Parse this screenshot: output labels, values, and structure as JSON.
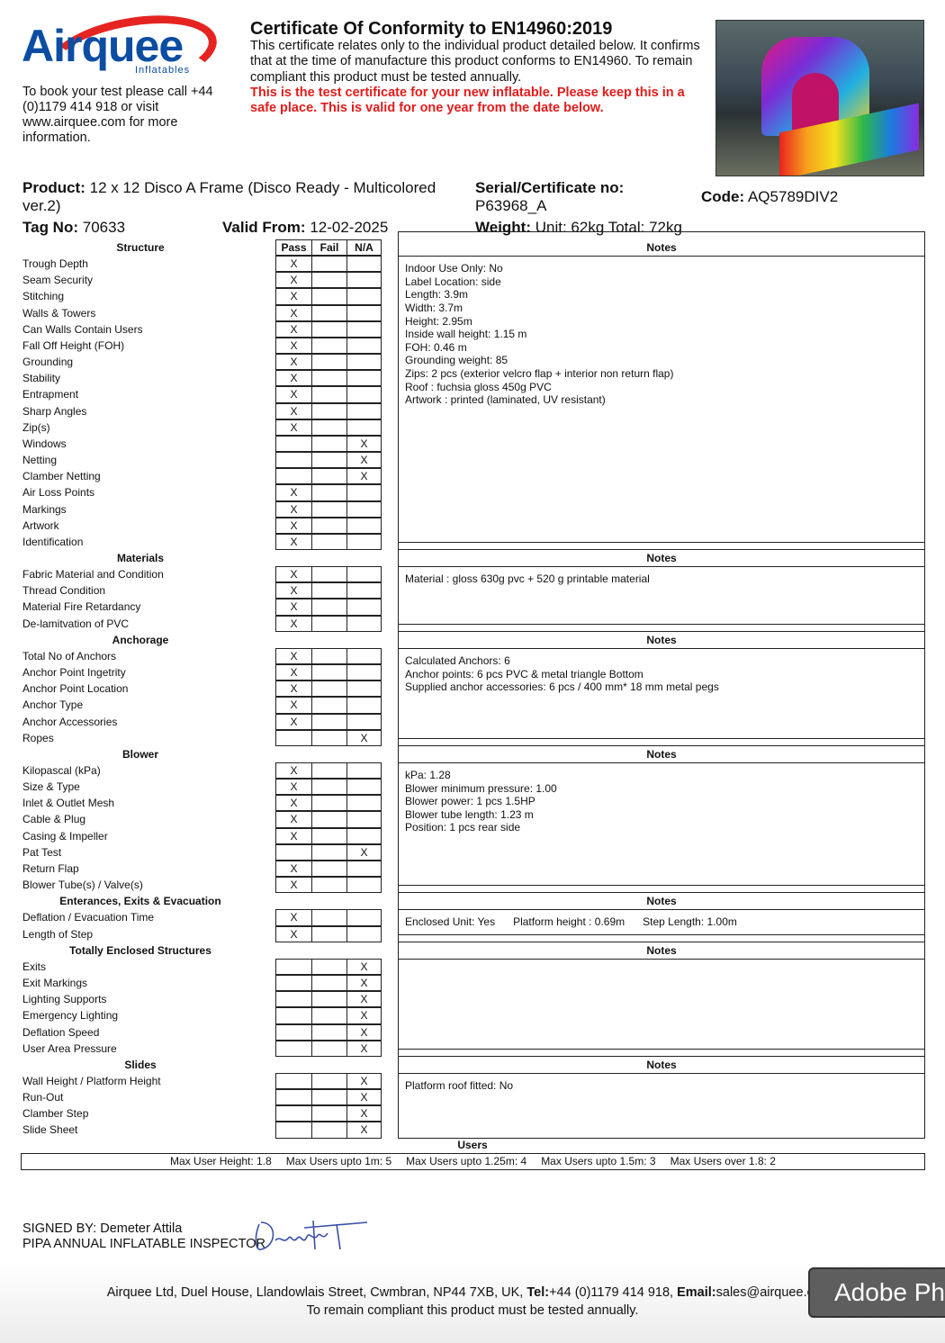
{
  "brand": {
    "logo_text": "Airquee",
    "logo_sub": "Inflatables",
    "primary": "#0b4da2",
    "accent": "#e52421"
  },
  "intro": "To book your test please call +44 (0)1179 414 918 or visit www.airquee.com for more information.",
  "cert": {
    "title": "Certificate Of Conformity to EN14960:2019",
    "body": "This certificate relates only to the individual product detailed below. It confirms that at the time of manufacture this product conforms to EN14960. To remain compliant this product must be tested annually.",
    "warning": "This is the test certificate for your new inflatable. Please keep this in a safe place. This is valid for one year from the date below."
  },
  "product": {
    "product_label": "Product:",
    "product_value": "12 x 12 Disco A Frame (Disco Ready - Multicolored ver.2)",
    "serial_label": "Serial/Certificate no:",
    "serial_value": "P63968_A",
    "code_label": "Code:",
    "code_value": "AQ5789DIV2",
    "tag_label": "Tag No:",
    "tag_value": "70633",
    "valid_label": "Valid From:",
    "valid_value": "12-02-2025",
    "weight_label": "Weight:",
    "weight_value": "Unit: 62kg Total: 72kg"
  },
  "table": {
    "columns": [
      "Pass",
      "Fail",
      "N/A"
    ],
    "notes_label": "Notes",
    "mark": "X"
  },
  "sections": [
    {
      "title": "Structure",
      "items": [
        [
          "Trough Depth",
          0
        ],
        [
          "Seam Security",
          0
        ],
        [
          "Stitching",
          0
        ],
        [
          "Walls & Towers",
          0
        ],
        [
          "Can Walls Contain Users",
          0
        ],
        [
          "Fall Off Height (FOH)",
          0
        ],
        [
          "Grounding",
          0
        ],
        [
          "Stability",
          0
        ],
        [
          "Entrapment",
          0
        ],
        [
          "Sharp Angles",
          0
        ],
        [
          "Zip(s)",
          0
        ],
        [
          "Windows",
          2
        ],
        [
          "Netting",
          2
        ],
        [
          "Clamber Netting",
          2
        ],
        [
          "Air Loss Points",
          0
        ],
        [
          "Markings",
          0
        ],
        [
          "Artwork",
          0
        ],
        [
          "Identification",
          0
        ]
      ],
      "notes": "Indoor Use Only: No\nLabel Location: side\nLength: 3.9m\nWidth: 3.7m\nHeight: 2.95m\nInside wall height: 1.15 m\nFOH: 0.46 m\nGrounding weight: 85\nZips: 2 pcs (exterior velcro flap + interior non return flap)\nRoof : fuchsia gloss 450g PVC\nArtwork : printed (laminated, UV resistant)"
    },
    {
      "title": "Materials",
      "items": [
        [
          "Fabric Material and Condition",
          0
        ],
        [
          "Thread Condition",
          0
        ],
        [
          "Material Fire Retardancy",
          0
        ],
        [
          "De-lamitvation of PVC",
          0
        ]
      ],
      "notes": "Material : gloss 630g pvc + 520 g printable material"
    },
    {
      "title": "Anchorage",
      "items": [
        [
          "Total No of Anchors",
          0
        ],
        [
          "Anchor Point Ingetrity",
          0
        ],
        [
          "Anchor Point Location",
          0
        ],
        [
          "Anchor Type",
          0
        ],
        [
          "Anchor Accessories",
          0
        ],
        [
          "Ropes",
          2
        ]
      ],
      "notes": "Calculated Anchors: 6\nAnchor points: 6 pcs PVC & metal triangle Bottom\nSupplied anchor accessories: 6 pcs / 400 mm* 18 mm metal pegs"
    },
    {
      "title": "Blower",
      "items": [
        [
          "Kilopascal (kPa)",
          0
        ],
        [
          "Size & Type",
          0
        ],
        [
          "Inlet & Outlet Mesh",
          0
        ],
        [
          "Cable & Plug",
          0
        ],
        [
          "Casing & Impeller",
          0
        ],
        [
          "Pat Test",
          2
        ],
        [
          "Return Flap",
          0
        ],
        [
          "Blower Tube(s) / Valve(s)",
          0
        ]
      ],
      "notes": "kPa: 1.28\nBlower minimum pressure: 1.00\nBlower power: 1 pcs 1.5HP\nBlower tube length: 1.23 m\nPosition: 1 pcs rear side"
    },
    {
      "title": "Enterances, Exits & Evacuation",
      "items": [
        [
          "Deflation / Evacuation Time",
          0
        ],
        [
          "Length of Step",
          0
        ]
      ],
      "notes": "Enclosed Unit: Yes      Platform height : 0.69m      Step Length: 1.00m"
    },
    {
      "title": "Totally Enclosed Structures",
      "items": [
        [
          "Exits",
          2
        ],
        [
          "Exit Markings",
          2
        ],
        [
          "Lighting Supports",
          2
        ],
        [
          "Emergency Lighting",
          2
        ],
        [
          "Deflation Speed",
          2
        ],
        [
          "User Area Pressure",
          2
        ]
      ],
      "notes": ""
    },
    {
      "title": "Slides",
      "items": [
        [
          "Wall Height / Platform Height",
          2
        ],
        [
          "Run-Out",
          2
        ],
        [
          "Clamber Step",
          2
        ],
        [
          "Slide Sheet",
          2
        ]
      ],
      "notes": "Platform roof fitted: No"
    }
  ],
  "users": {
    "title": "Users",
    "values": [
      "Max User Height: 1.8",
      "Max Users upto 1m: 5",
      "Max Users upto 1.25m: 4",
      "Max Users upto 1.5m: 3",
      "Max Users over 1.8: 2"
    ]
  },
  "signature": {
    "signed_by": "SIGNED BY: Demeter Attila",
    "role": "PIPA ANNUAL INFLATABLE INSPECTOR",
    "signature_text": "Demeter"
  },
  "footer": {
    "address": "Airquee Ltd, Duel House, Llandowlais Street, Cwmbran, NP44 7XB, UK, ",
    "tel_label": "Tel:",
    "tel": "+44 (0)1179 414 918, ",
    "email_label": "Email:",
    "email": "sales@airquee.co.uk",
    "line2": "To remain compliant this product must be tested annually."
  },
  "overlay": {
    "label": "Adobe Photoshop"
  }
}
